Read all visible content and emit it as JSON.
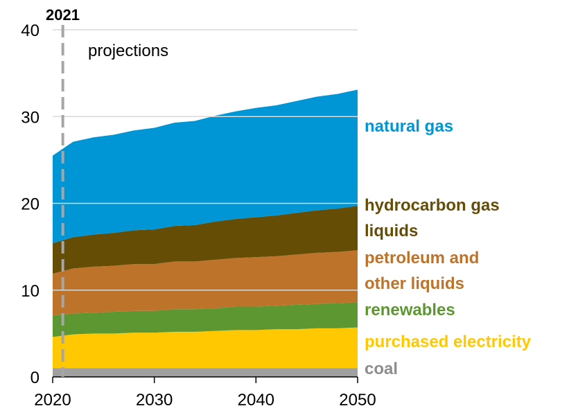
{
  "chart_data": {
    "type": "stacked_area",
    "x": [
      2020,
      2022,
      2024,
      2026,
      2028,
      2030,
      2032,
      2034,
      2036,
      2038,
      2040,
      2042,
      2044,
      2046,
      2048,
      2050
    ],
    "xlim": [
      2020,
      2050
    ],
    "xticks": [
      2020,
      2030,
      2040,
      2050
    ],
    "ylim": [
      0,
      40
    ],
    "yticks": [
      0,
      10,
      20,
      30,
      40
    ],
    "grid": true,
    "projection_start": {
      "x": 2021,
      "label": "2021"
    },
    "projection_text": "projections",
    "series": [
      {
        "name": "coal",
        "color": "#a0a0a0",
        "values": [
          1.0,
          1.0,
          1.0,
          1.0,
          1.0,
          1.0,
          1.0,
          1.0,
          1.0,
          1.0,
          1.0,
          1.0,
          1.0,
          1.0,
          1.0,
          1.0
        ]
      },
      {
        "name": "purchased electricity",
        "color": "#ffc800",
        "values": [
          3.6,
          3.9,
          4.0,
          4.0,
          4.1,
          4.1,
          4.2,
          4.2,
          4.3,
          4.4,
          4.4,
          4.5,
          4.5,
          4.6,
          4.6,
          4.7
        ]
      },
      {
        "name": "renewables",
        "color": "#5d9732",
        "values": [
          2.5,
          2.4,
          2.4,
          2.5,
          2.5,
          2.5,
          2.6,
          2.6,
          2.6,
          2.7,
          2.7,
          2.7,
          2.8,
          2.8,
          2.9,
          2.9
        ]
      },
      {
        "name": "petroleum and other liquids",
        "color": "#bd732a",
        "values": [
          4.8,
          5.2,
          5.3,
          5.3,
          5.4,
          5.4,
          5.5,
          5.5,
          5.6,
          5.6,
          5.7,
          5.7,
          5.8,
          5.9,
          5.9,
          6.0
        ]
      },
      {
        "name": "hydrocarbon gas liquids",
        "color": "#654d06",
        "values": [
          3.5,
          3.6,
          3.7,
          3.8,
          3.9,
          4.0,
          4.1,
          4.2,
          4.4,
          4.5,
          4.6,
          4.7,
          4.8,
          4.9,
          5.0,
          5.1
        ]
      },
      {
        "name": "natural gas",
        "color": "#0096d6",
        "values": [
          10.1,
          11.0,
          11.2,
          11.3,
          11.5,
          11.7,
          11.9,
          12.0,
          12.2,
          12.4,
          12.6,
          12.7,
          12.9,
          13.1,
          13.2,
          13.4
        ]
      }
    ]
  }
}
